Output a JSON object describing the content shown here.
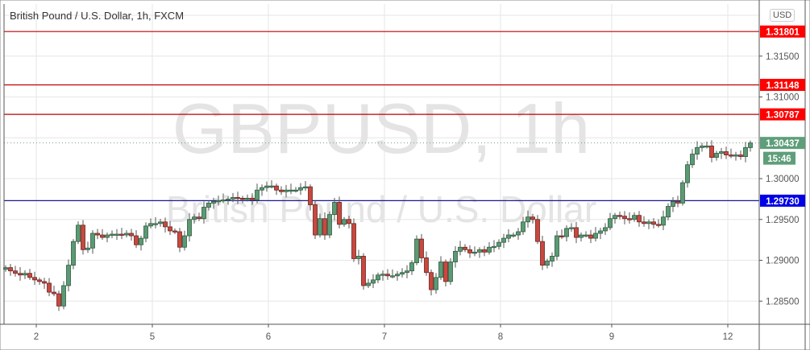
{
  "chart_data": {
    "type": "candlestick",
    "title": "British Pound / U.S. Dollar, 1h, FXCM",
    "watermark": {
      "symbol": "GBPUSD, 1h",
      "name": "British Pound / U.S. Dollar"
    },
    "currency_button": "USD",
    "first_open": 1.2889,
    "closes": [
      1.2891,
      1.2887,
      1.2884,
      1.2882,
      1.2884,
      1.2879,
      1.2876,
      1.2874,
      1.2872,
      1.2861,
      1.2859,
      1.2844,
      1.2869,
      1.2894,
      1.2923,
      1.2943,
      1.2913,
      1.2915,
      1.2933,
      1.2931,
      1.2928,
      1.2931,
      1.2932,
      1.2932,
      1.2931,
      1.2933,
      1.293,
      1.2919,
      1.2927,
      1.2942,
      1.2945,
      1.2945,
      1.2947,
      1.2941,
      1.2936,
      1.2935,
      1.2916,
      1.293,
      1.295,
      1.2953,
      1.2951,
      1.2965,
      1.297,
      1.2972,
      1.2973,
      1.2974,
      1.2975,
      1.2977,
      1.2976,
      1.2975,
      1.2976,
      1.2974,
      1.2986,
      1.2989,
      1.2991,
      1.2991,
      1.2986,
      1.2984,
      1.2986,
      1.2986,
      1.2986,
      1.2989,
      1.299,
      1.2968,
      1.2931,
      1.2951,
      1.2931,
      1.2956,
      1.2971,
      1.2944,
      1.295,
      1.2945,
      1.2902,
      1.2905,
      1.2869,
      1.2872,
      1.2876,
      1.2882,
      1.2883,
      1.2881,
      1.2881,
      1.2883,
      1.2885,
      1.2887,
      1.2897,
      1.2926,
      1.2903,
      1.2885,
      1.2864,
      1.2879,
      1.2898,
      1.2874,
      1.2898,
      1.2911,
      1.2916,
      1.2913,
      1.2909,
      1.291,
      1.2913,
      1.291,
      1.2916,
      1.2917,
      1.2922,
      1.2927,
      1.2931,
      1.2931,
      1.2935,
      1.2947,
      1.2953,
      1.295,
      1.2923,
      1.2894,
      1.2899,
      1.2905,
      1.293,
      1.2929,
      1.2939,
      1.294,
      1.2928,
      1.2931,
      1.2931,
      1.2927,
      1.2933,
      1.2936,
      1.294,
      1.2951,
      1.2955,
      1.2954,
      1.2951,
      1.295,
      1.2955,
      1.2947,
      1.2945,
      1.2947,
      1.2944,
      1.2943,
      1.2953,
      1.2966,
      1.2972,
      1.297,
      1.2995,
      1.3017,
      1.303,
      1.3038,
      1.304,
      1.304,
      1.3026,
      1.3031,
      1.3033,
      1.3029,
      1.3028,
      1.3029,
      1.3027,
      1.3038,
      1.30437
    ],
    "x_ticks": [
      {
        "label": "2",
        "bar": 6
      },
      {
        "label": "5",
        "bar": 30
      },
      {
        "label": "6",
        "bar": 54
      },
      {
        "label": "7",
        "bar": 78
      },
      {
        "label": "8",
        "bar": 102
      },
      {
        "label": "9",
        "bar": 125
      },
      {
        "label": "12",
        "bar": 149
      }
    ],
    "y_ticks": [
      "1.28500",
      "1.29000",
      "1.29500",
      "1.30000",
      "1.31000",
      "1.31500"
    ],
    "ylim": [
      1.2805,
      1.3212
    ],
    "grid": true,
    "levels": [
      {
        "value": 1.31801,
        "label": "1.31801",
        "color": "#ff0000"
      },
      {
        "value": 1.31148,
        "label": "1.31148",
        "color": "#ff0000"
      },
      {
        "value": 1.30787,
        "label": "1.30787",
        "color": "#ff0000"
      },
      {
        "value": 1.2973,
        "label": "1.29730",
        "color": "#0000e6"
      }
    ],
    "last_price": {
      "value": 1.30437,
      "label": "1.30437",
      "countdown": "15:46",
      "color": "#5f9e7a"
    },
    "colors": {
      "up": "#5b9a74",
      "up_border": "#2f5a3f",
      "down": "#c8483f",
      "down_border": "#6b2420",
      "wick": "#555555"
    }
  }
}
